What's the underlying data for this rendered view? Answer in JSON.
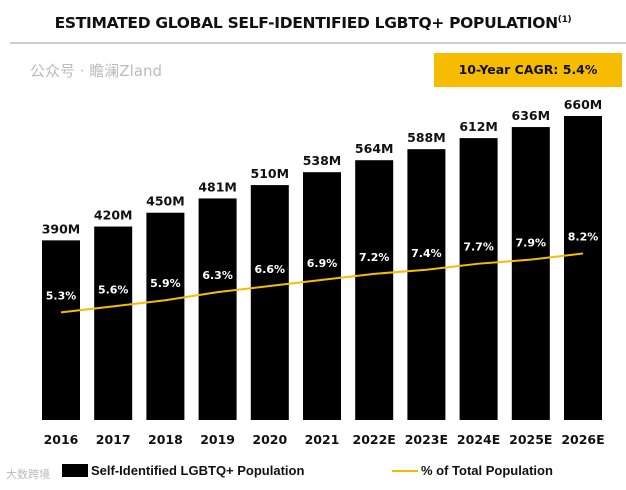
{
  "chart_data": {
    "type": "bar",
    "title": "ESTIMATED GLOBAL SELF-IDENTIFIED LGBTQ+ POPULATION",
    "title_footnote": "(1)",
    "annotation": "10-Year CAGR: 5.4%",
    "categories": [
      "2016",
      "2017",
      "2018",
      "2019",
      "2020",
      "2021",
      "2022E",
      "2023E",
      "2024E",
      "2025E",
      "2026E"
    ],
    "series": [
      {
        "name": "Self-Identified LGBTQ+ Population",
        "type": "bar",
        "color": "#000000",
        "values": [
          390,
          420,
          450,
          481,
          510,
          538,
          564,
          588,
          612,
          636,
          660
        ],
        "labels": [
          "390M",
          "420M",
          "450M",
          "481M",
          "510M",
          "538M",
          "564M",
          "588M",
          "612M",
          "636M",
          "660M"
        ]
      },
      {
        "name": "% of Total Population",
        "type": "line",
        "color": "#f7bc00",
        "values": [
          5.3,
          5.6,
          5.9,
          6.3,
          6.6,
          6.9,
          7.2,
          7.4,
          7.7,
          7.9,
          8.2
        ],
        "labels": [
          "5.3%",
          "5.6%",
          "5.9%",
          "6.3%",
          "6.6%",
          "6.9%",
          "7.2%",
          "7.4%",
          "7.7%",
          "7.9%",
          "8.2%"
        ]
      }
    ],
    "legend": "bottom"
  },
  "watermarks": [
    "大数跨境",
    "公众号 · 瞻澜Zland"
  ]
}
